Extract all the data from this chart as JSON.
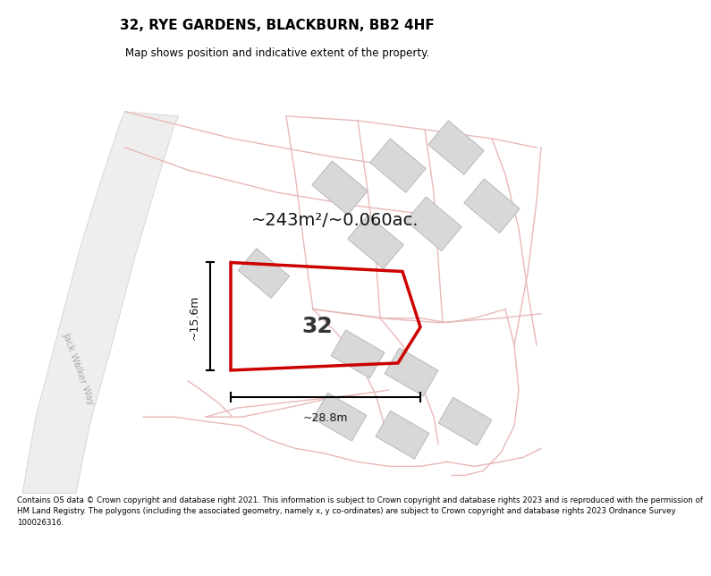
{
  "title": "32, RYE GARDENS, BLACKBURN, BB2 4HF",
  "subtitle": "Map shows position and indicative extent of the property.",
  "footer": "Contains OS data © Crown copyright and database right 2021. This information is subject to Crown copyright and database rights 2023 and is reproduced with the permission of\nHM Land Registry. The polygons (including the associated geometry, namely x, y co-ordinates) are subject to Crown copyright and database rights 2023 Ordnance Survey\n100026316.",
  "area_label": "~243m²/~0.060ac.",
  "width_label": "~28.8m",
  "height_label": "~15.6m",
  "plot_number": "32",
  "highlight_color": "#cc0000",
  "map_bg": "#f9f8f6",
  "pink": "#e8b8b8",
  "bld_fc": "#d8d8d8",
  "bld_ec": "#b8b8b8",
  "road_fc": "#eeeeee",
  "road_ec": "#cccccc",
  "road_label_color": "#999999"
}
